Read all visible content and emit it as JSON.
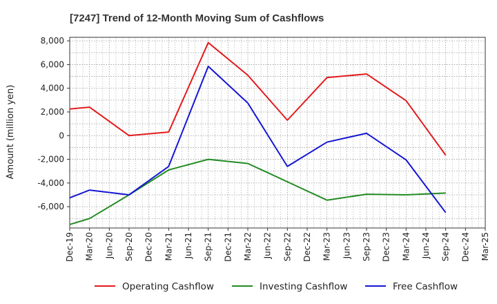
{
  "chart_data": {
    "type": "line",
    "title": "[7247]  Trend of 12-Month Moving Sum of Cashflows",
    "xlabel": "",
    "ylabel": "Amount (million yen)",
    "x": [
      "Dec-19",
      "Mar-20",
      "Jun-20",
      "Sep-20",
      "Dec-20",
      "Mar-21",
      "Jun-21",
      "Sep-21",
      "Dec-21",
      "Mar-22",
      "Jun-22",
      "Sep-22",
      "Dec-22",
      "Mar-23",
      "Jun-23",
      "Sep-23",
      "Dec-23",
      "Mar-24",
      "Jun-24",
      "Sep-24",
      "Dec-24",
      "Mar-25"
    ],
    "ylim": [
      -7800,
      8300
    ],
    "yticks": [
      8000,
      6000,
      4000,
      2000,
      0,
      -2000,
      -4000,
      -6000
    ],
    "ytick_labels": [
      "8,000",
      "6,000",
      "4,000",
      "2,000",
      "0",
      "-2,000",
      "-4,000",
      "-6,000"
    ],
    "grid": true,
    "legend_position": "bottom",
    "series": [
      {
        "name": "Operating Cashflow",
        "color": "#e31a1c",
        "values": [
          2250,
          2400,
          null,
          0,
          null,
          300,
          null,
          7850,
          null,
          5100,
          null,
          1300,
          null,
          4900,
          null,
          5200,
          null,
          2950,
          null,
          -1650,
          null,
          null
        ]
      },
      {
        "name": "Investing Cashflow",
        "color": "#238b23",
        "values": [
          -7500,
          -7000,
          null,
          -5000,
          null,
          -2900,
          null,
          -2000,
          null,
          -2350,
          null,
          -3900,
          null,
          -5450,
          null,
          -4950,
          null,
          -5000,
          null,
          -4850,
          null,
          null
        ]
      },
      {
        "name": "Free Cashflow",
        "color": "#1515d4",
        "values": [
          -5250,
          -4600,
          null,
          -5000,
          null,
          -2600,
          null,
          5850,
          null,
          2750,
          null,
          -2600,
          null,
          -550,
          null,
          200,
          null,
          -2050,
          null,
          -6500,
          null,
          null
        ]
      }
    ]
  }
}
